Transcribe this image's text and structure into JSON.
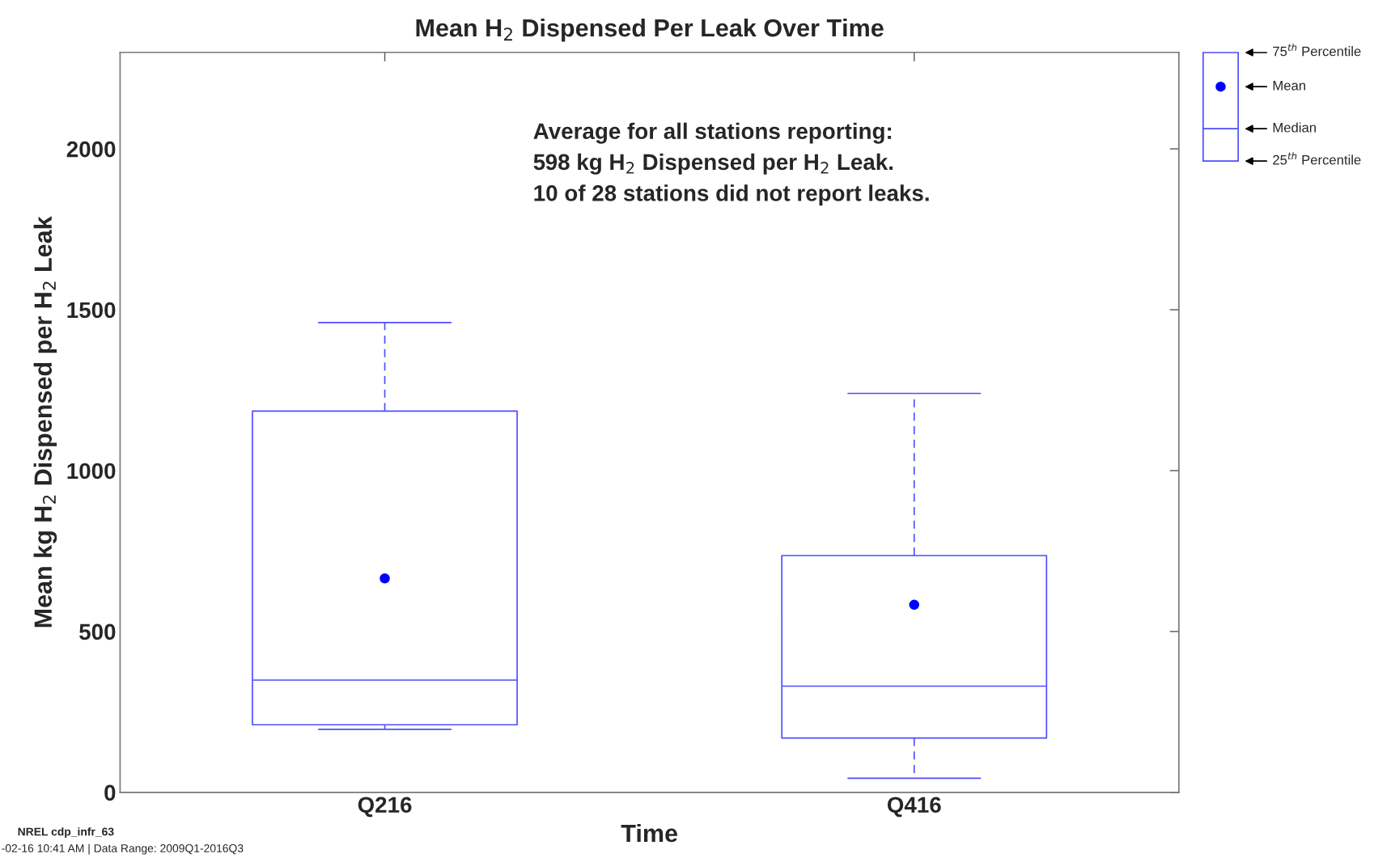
{
  "chart_data": {
    "type": "box",
    "title": "Mean H$_{2}$ Dispensed Per Leak Over Time",
    "xlabel": "Time",
    "ylabel": "Mean kg H$_{2}$ Dispensed per H$_{2}$ Leak",
    "categories": [
      "Q216",
      "Q416"
    ],
    "series": [
      {
        "color": "#4d4dff",
        "boxes": [
          {
            "low": 196,
            "q1": 210,
            "median": 349,
            "q3": 1185,
            "high": 1460,
            "mean": 665
          },
          {
            "low": 44,
            "q1": 169,
            "median": 330,
            "q3": 736,
            "high": 1240,
            "mean": 583
          }
        ]
      }
    ],
    "ylim": [
      0,
      2300
    ],
    "yticks": [
      0,
      500,
      1000,
      1500,
      2000
    ],
    "grid": false,
    "annotations": [
      "Average for all stations reporting:\n598 kg H$_{2}$ Dispensed per H$_{2}$ Leak.\n10 of 28 stations did not report leaks.",
      "75$^{th}$ Percentile",
      "Mean",
      "Median",
      "25$^{th}$ Percentile",
      "NREL cdp_infr_63",
      "-02-16 10:41 AM | Data Range: 2009Q1-2016Q3"
    ]
  }
}
